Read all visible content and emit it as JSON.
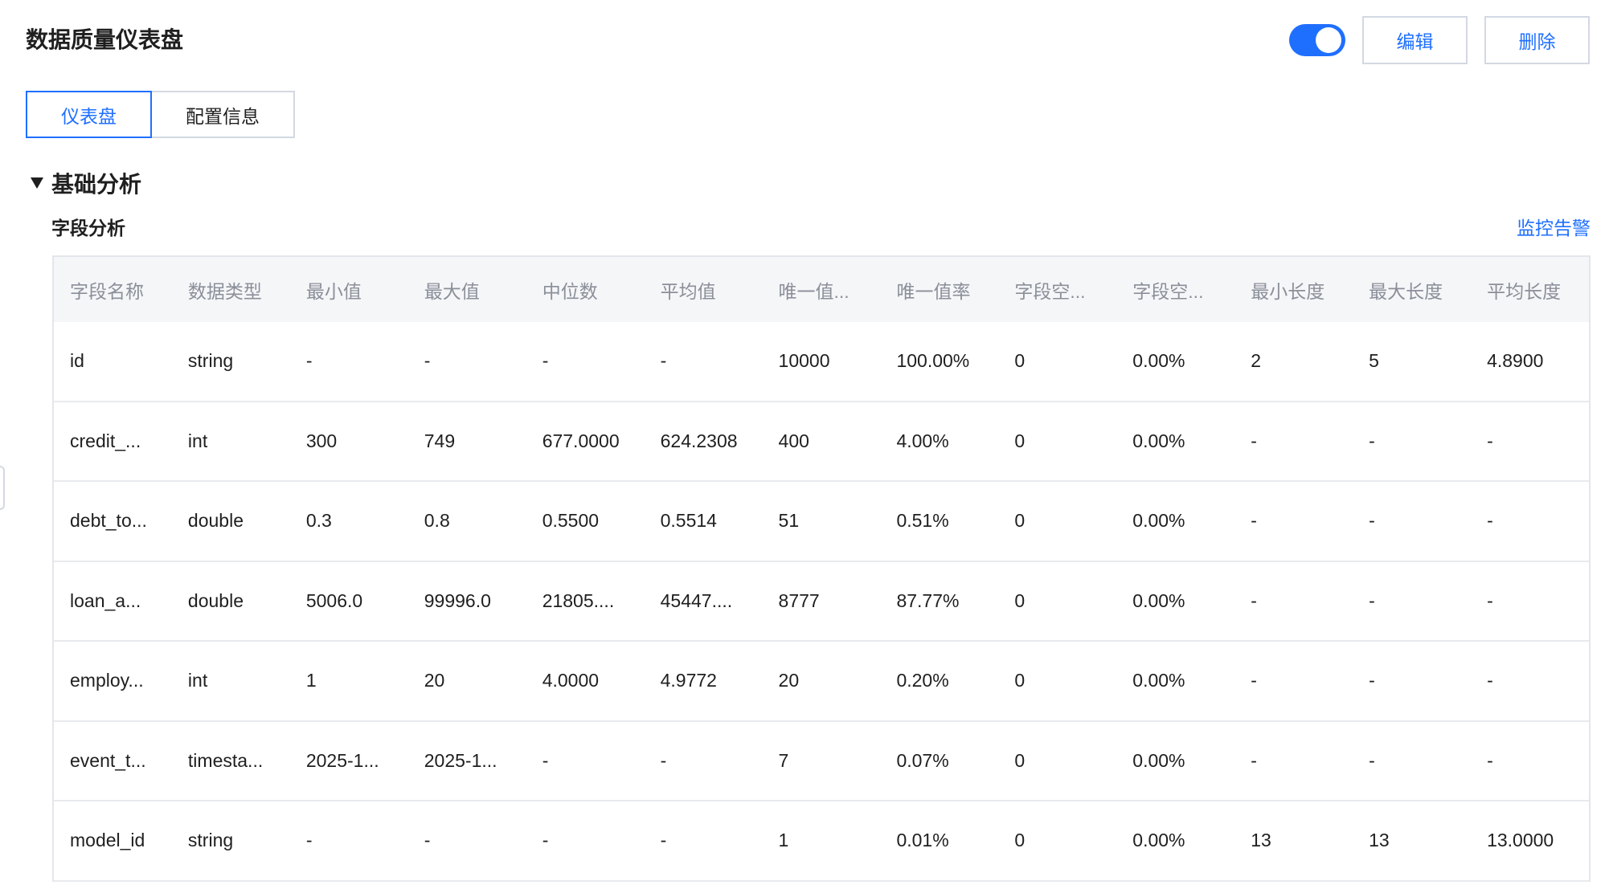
{
  "header": {
    "title": "数据质量仪表盘",
    "toggle_on": true,
    "edit_label": "编辑",
    "delete_label": "删除"
  },
  "tabs": [
    {
      "label": "仪表盘",
      "active": true
    },
    {
      "label": "配置信息",
      "active": false
    }
  ],
  "section": {
    "title": "基础分析",
    "expanded": true
  },
  "field_analysis": {
    "title": "字段分析",
    "alarm_link": "监控告警",
    "columns": [
      "字段名称",
      "数据类型",
      "最小值",
      "最大值",
      "中位数",
      "平均值",
      "唯一值...",
      "唯一值率",
      "字段空...",
      "字段空...",
      "最小长度",
      "最大长度",
      "平均长度"
    ],
    "rows": [
      [
        "id",
        "string",
        "-",
        "-",
        "-",
        "-",
        "10000",
        "100.00%",
        "0",
        "0.00%",
        "2",
        "5",
        "4.8900"
      ],
      [
        "credit_...",
        "int",
        "300",
        "749",
        "677.0000",
        "624.2308",
        "400",
        "4.00%",
        "0",
        "0.00%",
        "-",
        "-",
        "-"
      ],
      [
        "debt_to...",
        "double",
        "0.3",
        "0.8",
        "0.5500",
        "0.5514",
        "51",
        "0.51%",
        "0",
        "0.00%",
        "-",
        "-",
        "-"
      ],
      [
        "loan_a...",
        "double",
        "5006.0",
        "99996.0",
        "21805....",
        "45447....",
        "8777",
        "87.77%",
        "0",
        "0.00%",
        "-",
        "-",
        "-"
      ],
      [
        "employ...",
        "int",
        "1",
        "20",
        "4.0000",
        "4.9772",
        "20",
        "0.20%",
        "0",
        "0.00%",
        "-",
        "-",
        "-"
      ],
      [
        "event_t...",
        "timesta...",
        "2025-1...",
        "2025-1...",
        "-",
        "-",
        "7",
        "0.07%",
        "0",
        "0.00%",
        "-",
        "-",
        "-"
      ],
      [
        "model_id",
        "string",
        "-",
        "-",
        "-",
        "-",
        "1",
        "0.01%",
        "0",
        "0.00%",
        "13",
        "13",
        "13.0000"
      ]
    ]
  },
  "colors": {
    "accent": "#1f6fff",
    "border": "#d3d8e2",
    "header_bg": "#f5f6f8"
  }
}
